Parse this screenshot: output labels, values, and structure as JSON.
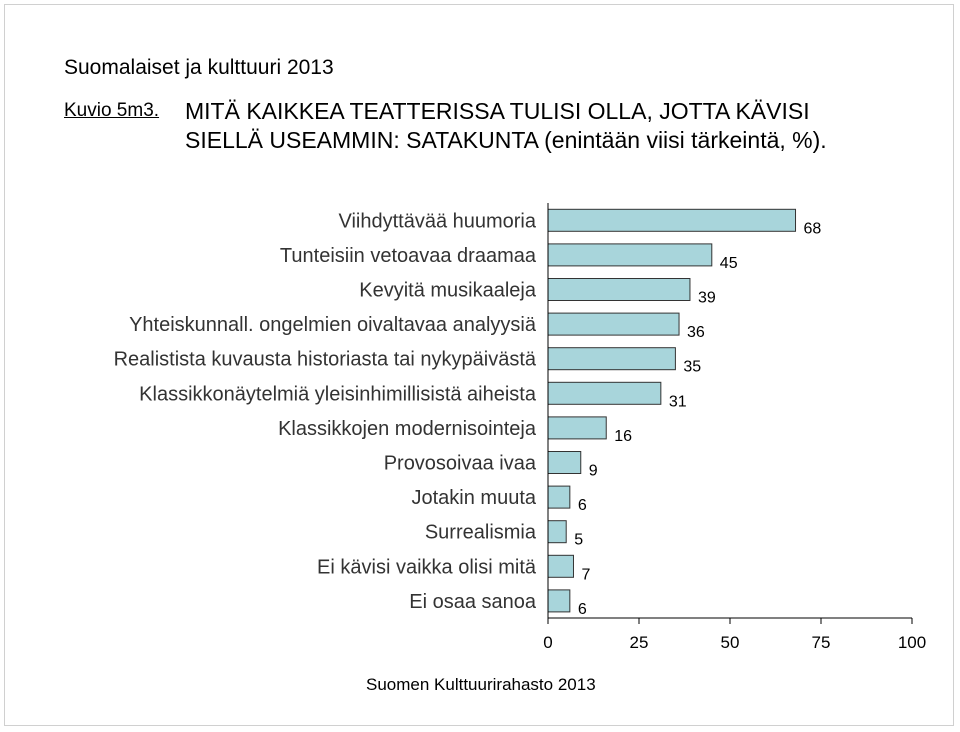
{
  "header": {
    "title": "Suomalaiset ja kulttuuri 2013",
    "figure_label": "Kuvio 5m3.",
    "chart_title_line1": "MITÄ KAIKKEA TEATTERISSA TULISI OLLA, JOTTA KÄVISI",
    "chart_title_line2": "SIELLÄ USEAMMIN: SATAKUNTA (enintään viisi tärkeintä, %)."
  },
  "footer": {
    "source": "Suomen Kulttuurirahasto 2013"
  },
  "colors": {
    "bar_fill": "#a8d5db",
    "bar_stroke": "#333333"
  },
  "chart_data": {
    "type": "bar",
    "orientation": "horizontal",
    "categories": [
      "Viihdyttävää huumoria",
      "Tunteisiin vetoavaa draamaa",
      "Kevyitä musikaaleja",
      "Yhteiskunnall. ongelmien oivaltavaa analyysiä",
      "Realistista kuvausta historiasta tai nykypäivästä",
      "Klassikkonäytelmiä yleisinhimillisistä aiheista",
      "Klassikkojen modernisointeja",
      "Provosoivaa ivaa",
      "Jotakin muuta",
      "Surrealismia",
      "Ei kävisi vaikka olisi mitä",
      "Ei osaa sanoa"
    ],
    "values": [
      68,
      45,
      39,
      36,
      35,
      31,
      16,
      9,
      6,
      5,
      7,
      6
    ],
    "xlim": [
      0,
      100
    ],
    "xticks": [
      0,
      25,
      50,
      75,
      100
    ],
    "grid": false
  }
}
